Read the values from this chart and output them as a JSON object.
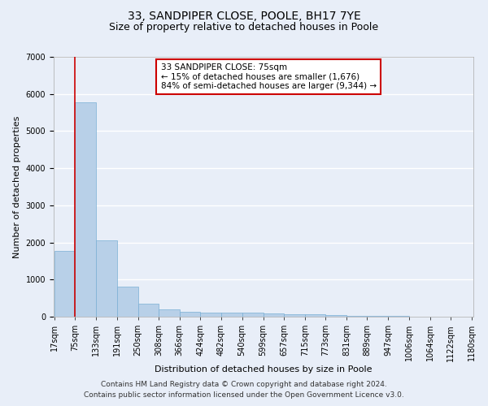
{
  "title": "33, SANDPIPER CLOSE, POOLE, BH17 7YE",
  "subtitle": "Size of property relative to detached houses in Poole",
  "xlabel": "Distribution of detached houses by size in Poole",
  "ylabel": "Number of detached properties",
  "footnote1": "Contains HM Land Registry data © Crown copyright and database right 2024.",
  "footnote2": "Contains public sector information licensed under the Open Government Licence v3.0.",
  "annotation_title": "33 SANDPIPER CLOSE: 75sqm",
  "annotation_line2": "← 15% of detached houses are smaller (1,676)",
  "annotation_line3": "84% of semi-detached houses are larger (9,344) →",
  "property_sqm": 75,
  "bar_edges": [
    17,
    75,
    133,
    191,
    250,
    308,
    366,
    424,
    482,
    540,
    599,
    657,
    715,
    773,
    831,
    889,
    947,
    1006,
    1064,
    1122,
    1180
  ],
  "bar_heights": [
    1780,
    5780,
    2060,
    820,
    340,
    200,
    135,
    120,
    115,
    105,
    90,
    75,
    60,
    35,
    25,
    18,
    12,
    8,
    5,
    4,
    3
  ],
  "bar_color": "#b8d0e8",
  "bar_edge_color": "#7aafd4",
  "vline_color": "#cc0000",
  "vline_x": 75,
  "ylim": [
    0,
    7000
  ],
  "yticks": [
    0,
    1000,
    2000,
    3000,
    4000,
    5000,
    6000,
    7000
  ],
  "bg_color": "#e8eef8",
  "grid_color": "#ffffff",
  "annotation_box_color": "#ffffff",
  "annotation_box_edge": "#cc0000",
  "title_fontsize": 10,
  "subtitle_fontsize": 9,
  "axis_label_fontsize": 8,
  "tick_fontsize": 7,
  "annotation_fontsize": 7.5,
  "footnote_fontsize": 6.5
}
